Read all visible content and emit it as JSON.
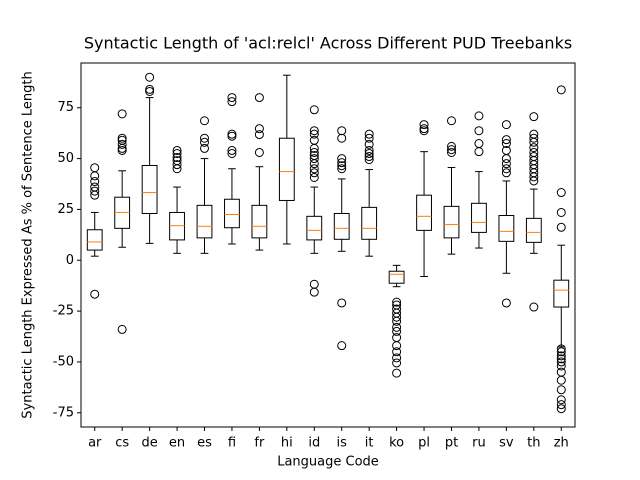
{
  "chart_data": {
    "type": "box",
    "title": "Syntactic Length of 'acl:relcl' Across Different PUD Treebanks",
    "x_label": "Language Code",
    "y_label": "Syntactic Length Expressed As % of Sentence Length",
    "categories": [
      "ar",
      "cs",
      "de",
      "en",
      "es",
      "fi",
      "fr",
      "hi",
      "id",
      "is",
      "it",
      "ko",
      "pl",
      "pt",
      "ru",
      "sv",
      "th",
      "zh"
    ],
    "box_color": "#000000",
    "median_color": "#ff7f0e",
    "ylim": [
      -82,
      97
    ],
    "yticks": [
      -75,
      -50,
      -25,
      0,
      25,
      50,
      75
    ],
    "boxes": [
      {
        "whislo": 2,
        "q1": 5,
        "med": 9,
        "q3": 15,
        "whishi": 23.5,
        "fliers": [
          45.5,
          41.5,
          38.7,
          36,
          34,
          32,
          -16.7
        ]
      },
      {
        "whislo": 6.4,
        "q1": 15.7,
        "med": 23.5,
        "q3": 31,
        "whishi": 44,
        "fliers": [
          72,
          60,
          59,
          57,
          55,
          54,
          -34
        ]
      },
      {
        "whislo": 8.3,
        "q1": 23,
        "med": 33.3,
        "q3": 46.6,
        "whishi": 80,
        "fliers": [
          90,
          84,
          83
        ]
      },
      {
        "whislo": 3.4,
        "q1": 10,
        "med": 17,
        "q3": 23.5,
        "whishi": 36,
        "fliers": [
          54,
          52.5,
          50.5,
          49,
          47,
          45
        ]
      },
      {
        "whislo": 3.4,
        "q1": 11,
        "med": 16.7,
        "q3": 27,
        "whishi": 50,
        "fliers": [
          68.6,
          60,
          58,
          55
        ]
      },
      {
        "whislo": 8,
        "q1": 16,
        "med": 22.5,
        "q3": 30,
        "whishi": 45,
        "fliers": [
          80,
          78,
          62,
          61,
          54,
          52.5
        ]
      },
      {
        "whislo": 5,
        "q1": 11,
        "med": 16.7,
        "q3": 27,
        "whishi": 46,
        "fliers": [
          80,
          64.7,
          61.8,
          53
        ]
      },
      {
        "whislo": 8,
        "q1": 29.4,
        "med": 43.6,
        "q3": 60,
        "whishi": 91,
        "fliers": []
      },
      {
        "whislo": 3.4,
        "q1": 10,
        "med": 14.7,
        "q3": 21.6,
        "whishi": 36,
        "fliers": [
          74,
          63.7,
          62,
          59,
          55,
          53,
          51.5,
          50,
          47.5,
          45,
          43,
          40.7,
          -11.8,
          -15.7
        ]
      },
      {
        "whislo": 4.4,
        "q1": 10.3,
        "med": 15.7,
        "q3": 23,
        "whishi": 40,
        "fliers": [
          63.7,
          60,
          50,
          48,
          46.5,
          45,
          -21,
          -42
        ]
      },
      {
        "whislo": 2,
        "q1": 10.3,
        "med": 15.7,
        "q3": 26,
        "whishi": 44.6,
        "fliers": [
          62,
          60,
          57,
          54,
          52.5,
          51,
          49.5
        ]
      },
      {
        "whislo": -13,
        "q1": -11.3,
        "med": -6.9,
        "q3": -5.4,
        "whishi": -2.5,
        "fliers": [
          -20.6,
          -22,
          -24,
          -26,
          -28,
          -30,
          -33,
          -35,
          -38,
          -42,
          -45,
          -48,
          -50.5,
          -55.5
        ]
      },
      {
        "whislo": -8,
        "q1": 14.7,
        "med": 21.6,
        "q3": 32,
        "whishi": 53.4,
        "fliers": [
          66.7,
          64.7,
          63.7
        ]
      },
      {
        "whislo": 3,
        "q1": 11,
        "med": 17.6,
        "q3": 26.5,
        "whishi": 45.6,
        "fliers": [
          68.6,
          56,
          54.4,
          53
        ]
      },
      {
        "whislo": 6,
        "q1": 13.7,
        "med": 18.6,
        "q3": 28,
        "whishi": 43.6,
        "fliers": [
          71,
          63.7,
          57.4,
          53.4
        ]
      },
      {
        "whislo": -6.4,
        "q1": 9.3,
        "med": 14.2,
        "q3": 22,
        "whishi": 39,
        "fliers": [
          66.7,
          59.3,
          57.4,
          54,
          50,
          47.5,
          45,
          43,
          -21
        ]
      },
      {
        "whislo": 3.4,
        "q1": 8.8,
        "med": 13.7,
        "q3": 20.6,
        "whishi": 35,
        "fliers": [
          70.6,
          62,
          60,
          58,
          55.4,
          53,
          51,
          49,
          47,
          45,
          43,
          41,
          39,
          -23
        ]
      },
      {
        "whislo": -42.6,
        "q1": -23,
        "med": -14.7,
        "q3": -9.8,
        "whishi": 7.4,
        "fliers": [
          83.8,
          33.3,
          23.5,
          16.2,
          -43.6,
          -45,
          -47,
          -48.5,
          -50,
          -52,
          -55,
          -59,
          -63.7,
          -68.6,
          -71,
          -73
        ]
      }
    ]
  }
}
